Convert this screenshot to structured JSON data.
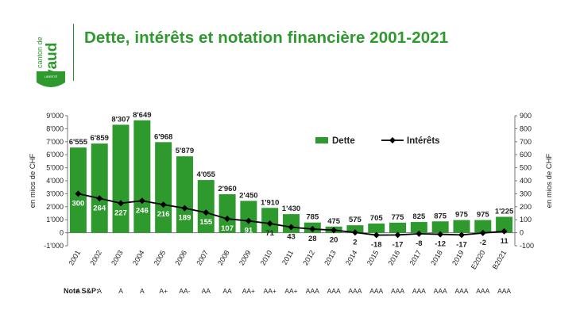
{
  "header": {
    "title": "Dette, intérêts et notation financière 2001-2021",
    "logo_text": "canton de vaud",
    "brand_color": "#2e9a2e"
  },
  "chart_data": {
    "type": "bar",
    "categories": [
      "2001",
      "2002",
      "2003",
      "2004",
      "2005",
      "2006",
      "2007",
      "2008",
      "2009",
      "2010",
      "2011",
      "2012",
      "2013",
      "2014",
      "2015",
      "2016",
      "2017",
      "2018",
      "2019",
      "E2020",
      "B2021"
    ],
    "series": [
      {
        "name": "Dette",
        "type": "bar",
        "axis": "left",
        "color": "#2e9a2e",
        "values": [
          6555,
          6859,
          8307,
          8649,
          6968,
          5879,
          4055,
          2960,
          2450,
          1910,
          1430,
          785,
          475,
          575,
          705,
          775,
          825,
          875,
          975,
          975,
          1225
        ],
        "labels": [
          "6'555",
          "6'859",
          "8'307",
          "8'649",
          "6'968",
          "5'879",
          "4'055",
          "2'960",
          "2'450",
          "1'910",
          "1'430",
          "785",
          "475",
          "575",
          "705",
          "775",
          "825",
          "875",
          "975",
          "975",
          "1'225"
        ]
      },
      {
        "name": "Intérêts",
        "type": "line",
        "axis": "right",
        "color": "#000000",
        "values": [
          300,
          264,
          227,
          246,
          216,
          189,
          155,
          107,
          91,
          71,
          43,
          28,
          20,
          2,
          -18,
          -17,
          -8,
          -12,
          -17,
          -2,
          11
        ],
        "labels": [
          "300",
          "264",
          "227",
          "246",
          "216",
          "189",
          "155",
          "107",
          "91",
          "71",
          "43",
          "28",
          "20",
          "2",
          "-18",
          "-17",
          "-8",
          "-12",
          "-17",
          "-2",
          "11"
        ]
      }
    ],
    "ylabel_left": "en mios de CHF",
    "ylabel_right": "en mios de CHF",
    "ylim_left": [
      -1000,
      9000
    ],
    "ylim_right": [
      -100,
      900
    ],
    "yticks_left": [
      "-1'000",
      "0",
      "1'000",
      "2'000",
      "3'000",
      "4'000",
      "5'000",
      "6'000",
      "7'000",
      "8'000",
      "9'000"
    ],
    "yticks_right": [
      "-100",
      "0",
      "100",
      "200",
      "300",
      "400",
      "500",
      "600",
      "700",
      "800",
      "900"
    ],
    "legend": {
      "position": "top-right"
    },
    "grid": false,
    "ratings_label": "Note S&P:",
    "ratings": [
      "A",
      "A",
      "A",
      "A",
      "A+",
      "AA-",
      "AA",
      "AA",
      "AA+",
      "AA+",
      "AA+",
      "AAA",
      "AAA",
      "AAA",
      "AAA",
      "AAA",
      "AAA",
      "AAA",
      "AAA",
      "AAA",
      "AAA"
    ]
  }
}
